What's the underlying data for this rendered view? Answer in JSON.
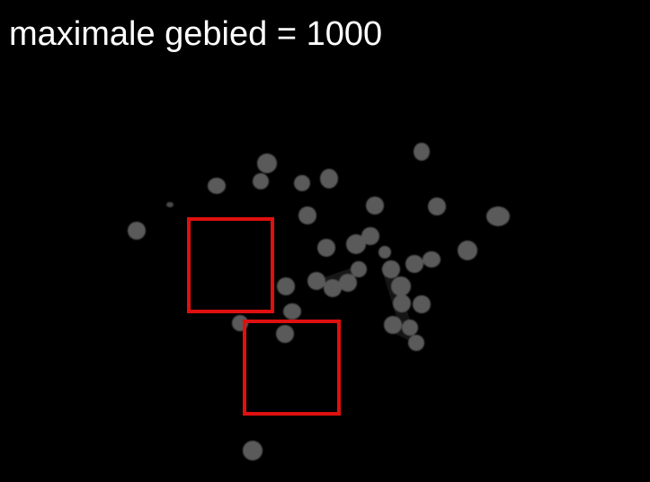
{
  "caption": "maximale gebied = 1000",
  "colors": {
    "background": "#000000",
    "caption": "#ffffff",
    "blob": "#5a5a5a",
    "blob_dim": "#3a3a3a",
    "box": "#e01010"
  },
  "overlay": {
    "box_count": 2
  }
}
